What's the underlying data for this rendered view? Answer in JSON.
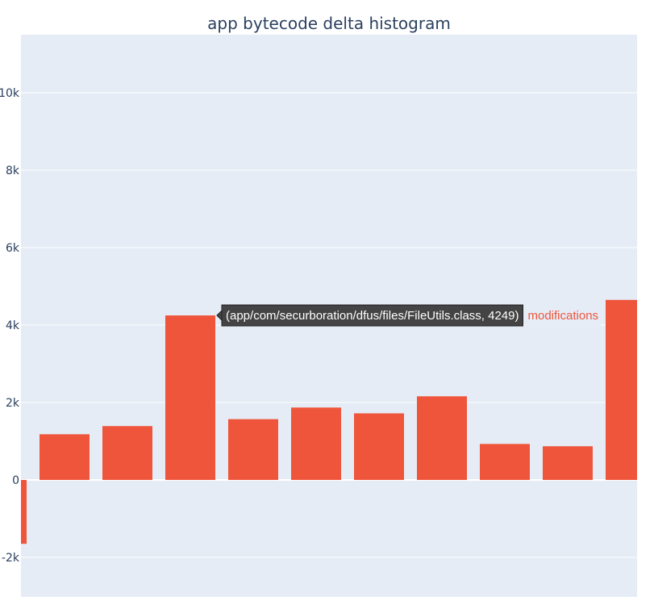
{
  "chart_data": {
    "type": "bar",
    "title": "app bytecode delta histogram",
    "xlabel": "",
    "ylabel": "",
    "ylim": [
      -3000,
      11400
    ],
    "y_ticks": [
      -2000,
      0,
      2000,
      4000,
      6000,
      8000,
      10000
    ],
    "y_tick_labels": [
      "-2k",
      "0",
      "2k",
      "4k",
      "6k",
      "8k",
      "10k"
    ],
    "grid": true,
    "legend": "none",
    "series": [
      {
        "values": [
          -1650,
          1180,
          1390,
          4249,
          1570,
          1870,
          1720,
          2160,
          930,
          870,
          4650
        ]
      }
    ],
    "hover": {
      "bar_index": 3,
      "text": "(app/com/securboration/dfus/files/FileUtils.class, 4249)",
      "trace_label": "modifications"
    },
    "colors": {
      "bar": "#ef553b",
      "plot_bg": "#e5ecf6",
      "grid": "#ffffff",
      "text": "#2a3f5f"
    }
  }
}
